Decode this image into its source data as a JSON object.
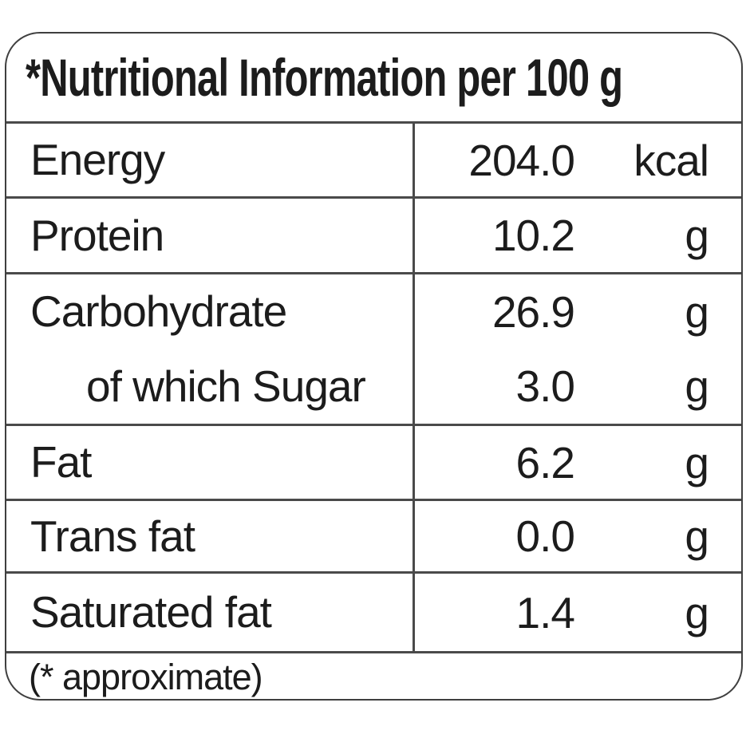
{
  "colors": {
    "border": "#4a4a4a",
    "text": "#1c1c1c",
    "background": "#ffffff"
  },
  "header": {
    "title": "*Nutritional Information per 100 g"
  },
  "table": {
    "rows": [
      {
        "label": "Energy",
        "value": "204.0",
        "unit": "kcal"
      },
      {
        "label": "Protein",
        "value": "10.2",
        "unit": "g"
      },
      {
        "label": "Carbohydrate",
        "value": "26.9",
        "unit": "g"
      },
      {
        "label": "of which Sugar",
        "value": "3.0",
        "unit": "g",
        "indent": true
      },
      {
        "label": "Fat",
        "value": "6.2",
        "unit": "g"
      },
      {
        "label": "Trans fat",
        "value": "0.0",
        "unit": "g"
      },
      {
        "label": "Saturated fat",
        "value": "1.4",
        "unit": "g"
      }
    ]
  },
  "footer": {
    "note": "(* approximate)"
  }
}
